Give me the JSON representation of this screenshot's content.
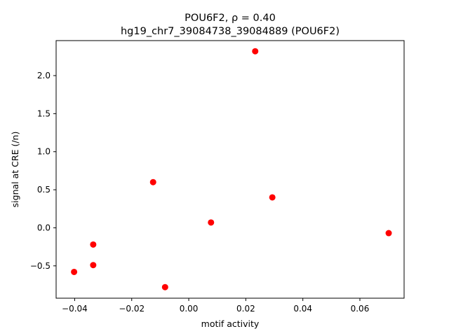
{
  "chart_data": {
    "type": "scatter",
    "title_line1": "POU6F2, ρ = 0.40",
    "title_line2": "hg19_chr7_39084738_39084889 (POU6F2)",
    "xlabel": "motif activity",
    "ylabel": "signal at CRE (/n)",
    "xlim": [
      -0.0465,
      0.0755
    ],
    "ylim": [
      -0.925,
      2.46
    ],
    "xticks": [
      -0.04,
      -0.02,
      0.0,
      0.02,
      0.04,
      0.06
    ],
    "xtick_labels": [
      "−0.04",
      "−0.02",
      "0.00",
      "0.02",
      "0.04",
      "0.06"
    ],
    "yticks": [
      -0.5,
      0.0,
      0.5,
      1.0,
      1.5,
      2.0
    ],
    "ytick_labels": [
      "−0.5",
      "0.0",
      "0.5",
      "1.0",
      "1.5",
      "2.0"
    ],
    "marker_color": "#ff0000",
    "grid": false,
    "points": [
      {
        "x": 0.0233,
        "y": 2.32
      },
      {
        "x": -0.0125,
        "y": 0.6
      },
      {
        "x": 0.0293,
        "y": 0.4
      },
      {
        "x": 0.0078,
        "y": 0.07
      },
      {
        "x": 0.0701,
        "y": -0.07
      },
      {
        "x": -0.0335,
        "y": -0.22
      },
      {
        "x": -0.0335,
        "y": -0.49
      },
      {
        "x": -0.0402,
        "y": -0.58
      },
      {
        "x": -0.0083,
        "y": -0.78
      }
    ]
  }
}
